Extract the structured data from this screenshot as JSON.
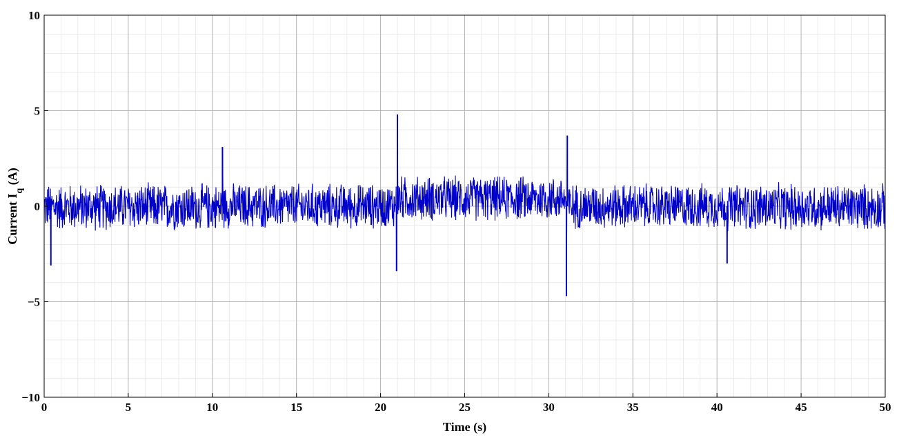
{
  "chart_data": {
    "type": "line",
    "title": "",
    "xlabel": "Time (s)",
    "ylabel": "Current I",
    "ylabel_subscript": "q",
    "ylabel_unit": " (A)",
    "xlim": [
      0,
      50
    ],
    "ylim": [
      -10,
      10
    ],
    "x_ticks": [
      0,
      5,
      10,
      15,
      20,
      25,
      30,
      35,
      40,
      45,
      50
    ],
    "y_ticks": [
      -10,
      -5,
      0,
      5,
      10
    ],
    "x_tick_labels": [
      "0",
      "5",
      "10",
      "15",
      "20",
      "25",
      "30",
      "35",
      "40",
      "45",
      "50"
    ],
    "y_tick_labels": [
      "−10",
      "−5",
      "0",
      "5",
      "10"
    ],
    "grid": true,
    "minor_grid": true,
    "series": [
      {
        "color": "#0000cc",
        "segments": [
          {
            "x_start": 0.0,
            "x_end": 10.5,
            "min": -1.4,
            "max": 1.3
          },
          {
            "x_start": 10.5,
            "x_end": 20.9,
            "min": -1.3,
            "max": 1.3
          },
          {
            "x_start": 20.9,
            "x_end": 31.0,
            "min": -0.9,
            "max": 1.7
          },
          {
            "x_start": 31.0,
            "x_end": 40.4,
            "min": -1.3,
            "max": 1.3
          },
          {
            "x_start": 40.4,
            "x_end": 50.0,
            "min": -1.4,
            "max": 1.3
          }
        ],
        "spikes": [
          {
            "x": 0.4,
            "y": -3.1
          },
          {
            "x": 10.6,
            "y": 3.1
          },
          {
            "x": 21.0,
            "y": 4.8
          },
          {
            "x": 20.95,
            "y": -3.4
          },
          {
            "x": 31.1,
            "y": 3.7
          },
          {
            "x": 31.05,
            "y": -4.7
          },
          {
            "x": 40.6,
            "y": -3.0
          }
        ]
      }
    ]
  }
}
